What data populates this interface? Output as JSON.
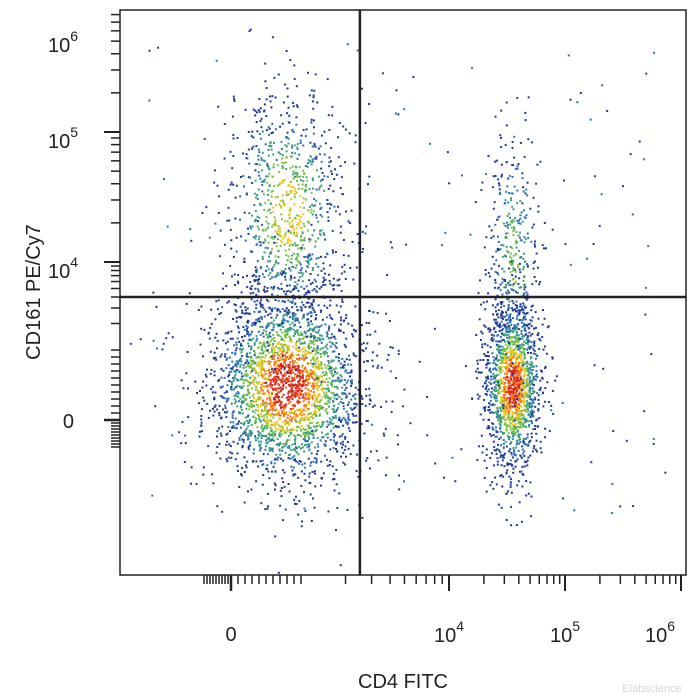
{
  "chart_data": {
    "type": "scatter",
    "subtype": "flow-cytometry-density-dot-plot",
    "xlabel": "CD4 FITC",
    "ylabel": "CD161 PE/Cy7",
    "x_scale": "biexponential",
    "y_scale": "biexponential",
    "x_ticks": [
      {
        "value": 0,
        "label": "0"
      },
      {
        "value": 10000,
        "label": "10",
        "exp": "4"
      },
      {
        "value": 100000,
        "label": "10",
        "exp": "5"
      },
      {
        "value": 1000000,
        "label": "10",
        "exp": "6"
      }
    ],
    "y_ticks": [
      {
        "value": 0,
        "label": "0"
      },
      {
        "value": 10000,
        "label": "10",
        "exp": "4"
      },
      {
        "value": 100000,
        "label": "10",
        "exp": "5"
      },
      {
        "value": 1000000,
        "label": "10",
        "exp": "6"
      }
    ],
    "quadrant_gates": {
      "x": 2500,
      "y": 4000
    },
    "density_colors": [
      "#1f3a93",
      "#2f6fb5",
      "#3aa17a",
      "#7cc242",
      "#f0c419",
      "#f26b1d",
      "#d7261e"
    ],
    "populations": [
      {
        "name": "",
        "quadrant": "lower-left",
        "center_x": 800,
        "center_y": 500,
        "events": 2600,
        "density": "high"
      },
      {
        "name": "",
        "quadrant": "upper-left",
        "center_x": 800,
        "center_y": 25000,
        "events": 900,
        "density": "medium"
      },
      {
        "name": "",
        "quadrant": "lower-right",
        "center_x": 35000,
        "center_y": 500,
        "events": 1500,
        "density": "high"
      },
      {
        "name": "",
        "quadrant": "upper-right",
        "center_x": 35000,
        "center_y": 12000,
        "events": 350,
        "density": "low"
      }
    ],
    "grid": false,
    "legend": "none"
  },
  "watermark": "Elabscience"
}
